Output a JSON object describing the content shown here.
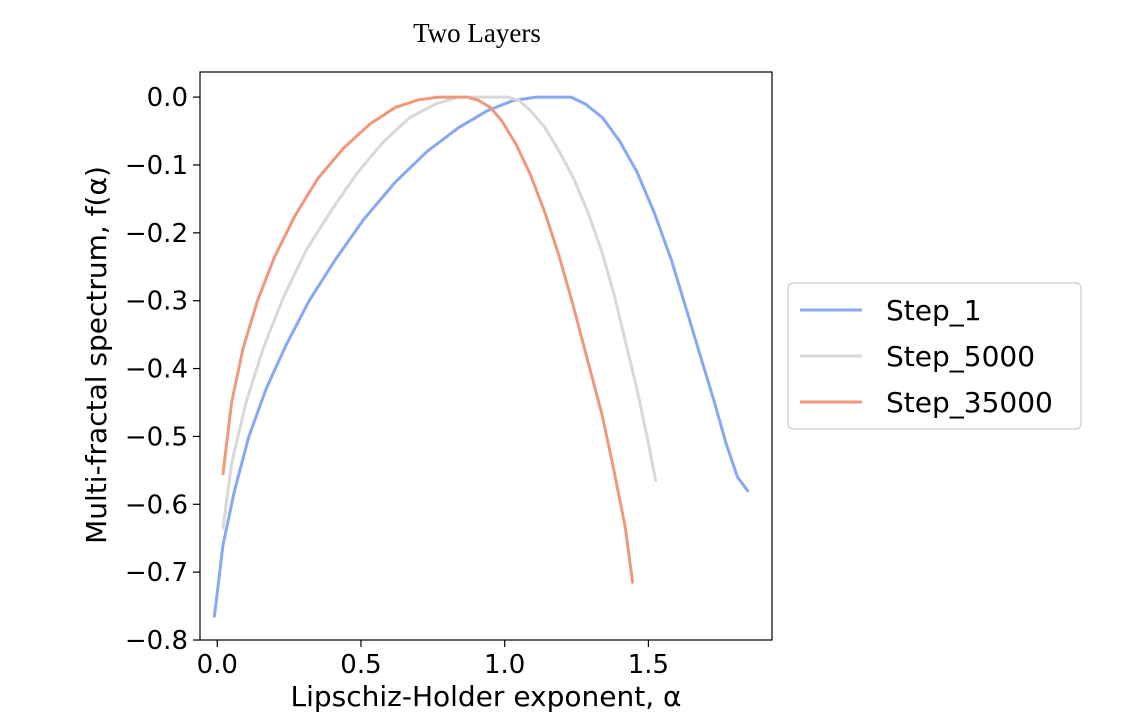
{
  "chart_data": {
    "type": "line",
    "title": "Two Layers",
    "xlabel": "Lipschiz-Holder exponent, α",
    "ylabel": "Multi-fractal spectrum, f(α)",
    "xlim": [
      -0.06,
      1.93
    ],
    "ylim": [
      -0.8,
      0.037
    ],
    "xticks": [
      0.0,
      0.5,
      1.0,
      1.5
    ],
    "xtick_labels": [
      "0.0",
      "0.5",
      "1.0",
      "1.5"
    ],
    "yticks": [
      0.0,
      -0.1,
      -0.2,
      -0.3,
      -0.4,
      -0.5,
      -0.6,
      -0.7,
      -0.8
    ],
    "ytick_labels": [
      "0.0",
      "−0.1",
      "−0.2",
      "−0.3",
      "−0.4",
      "−0.5",
      "−0.6",
      "−0.7",
      "−0.8"
    ],
    "grid": false,
    "legend_position": "outside-right",
    "series": [
      {
        "name": "Step_1",
        "color": "#86a8f5",
        "x": [
          -0.01,
          0.02,
          0.06,
          0.11,
          0.17,
          0.24,
          0.32,
          0.41,
          0.51,
          0.62,
          0.73,
          0.84,
          0.94,
          1.03,
          1.11,
          1.18,
          1.23,
          1.28,
          1.34,
          1.4,
          1.46,
          1.52,
          1.58,
          1.63,
          1.68,
          1.73,
          1.77,
          1.81,
          1.845
        ],
        "y": [
          -0.765,
          -0.66,
          -0.58,
          -0.5,
          -0.43,
          -0.365,
          -0.3,
          -0.24,
          -0.18,
          -0.125,
          -0.08,
          -0.045,
          -0.02,
          -0.005,
          0.0,
          0.0,
          0.0,
          -0.01,
          -0.03,
          -0.065,
          -0.11,
          -0.17,
          -0.24,
          -0.31,
          -0.38,
          -0.45,
          -0.51,
          -0.56,
          -0.58
        ]
      },
      {
        "name": "Step_5000",
        "color": "#d8d8d8",
        "x": [
          0.02,
          0.05,
          0.1,
          0.16,
          0.23,
          0.31,
          0.4,
          0.49,
          0.58,
          0.67,
          0.76,
          0.84,
          0.91,
          0.97,
          1.01,
          1.05,
          1.09,
          1.14,
          1.19,
          1.24,
          1.29,
          1.34,
          1.38,
          1.42,
          1.46,
          1.5,
          1.525
        ],
        "y": [
          -0.635,
          -0.54,
          -0.45,
          -0.37,
          -0.295,
          -0.225,
          -0.165,
          -0.11,
          -0.065,
          -0.03,
          -0.01,
          0.0,
          0.0,
          0.0,
          0.0,
          -0.005,
          -0.02,
          -0.045,
          -0.08,
          -0.12,
          -0.17,
          -0.23,
          -0.29,
          -0.36,
          -0.43,
          -0.51,
          -0.565
        ]
      },
      {
        "name": "Step_35000",
        "color": "#f0987a",
        "x": [
          0.02,
          0.05,
          0.09,
          0.14,
          0.2,
          0.27,
          0.35,
          0.44,
          0.53,
          0.62,
          0.7,
          0.77,
          0.83,
          0.87,
          0.91,
          0.95,
          0.99,
          1.04,
          1.09,
          1.14,
          1.19,
          1.24,
          1.29,
          1.34,
          1.38,
          1.42,
          1.445
        ],
        "y": [
          -0.555,
          -0.45,
          -0.37,
          -0.3,
          -0.235,
          -0.175,
          -0.12,
          -0.075,
          -0.04,
          -0.015,
          -0.004,
          0.0,
          0.0,
          0.0,
          -0.005,
          -0.015,
          -0.035,
          -0.07,
          -0.115,
          -0.17,
          -0.235,
          -0.31,
          -0.39,
          -0.47,
          -0.55,
          -0.635,
          -0.715
        ]
      }
    ]
  }
}
